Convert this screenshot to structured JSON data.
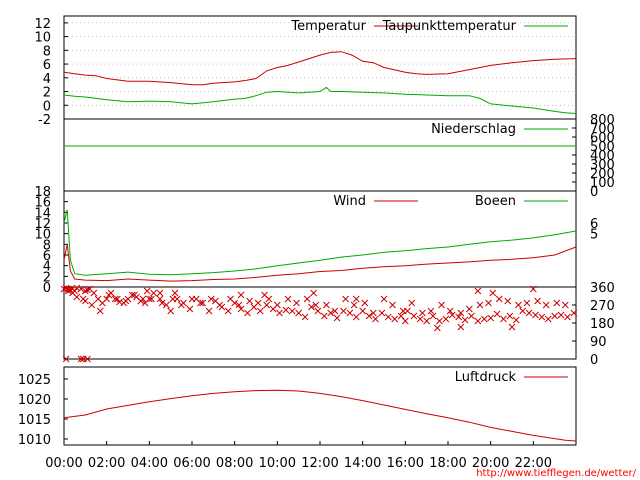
{
  "credit": "http://www.tiefflegen.de/wetter/",
  "colors": {
    "red": "#cc0000",
    "green": "#00aa00",
    "grid": "#a0a0a0",
    "black": "#000000",
    "credit": "#ff0000"
  },
  "chart_data": [
    {
      "type": "line",
      "panel": "temperature",
      "x_unit": "hour",
      "xlim": [
        0,
        24
      ],
      "ylim": [
        -2,
        13
      ],
      "y_ticks": [
        "12",
        "10",
        "8",
        "6",
        "4",
        "2",
        "0",
        "-2"
      ],
      "grid": true,
      "legend_position": "top",
      "series": [
        {
          "name": "Temperatur",
          "color": "#cc0000",
          "x": [
            0,
            0.5,
            1,
            1.5,
            2,
            3,
            4,
            5,
            6,
            6.5,
            7,
            8,
            8.5,
            9,
            9.5,
            10,
            10.5,
            11,
            12,
            12.5,
            13,
            13.5,
            14,
            14.5,
            15,
            16,
            16.5,
            17,
            18,
            19,
            20,
            21,
            22,
            23,
            24
          ],
          "y": [
            4.8,
            4.6,
            4.4,
            4.3,
            3.9,
            3.5,
            3.5,
            3.3,
            3.0,
            3.0,
            3.2,
            3.4,
            3.6,
            3.9,
            5.0,
            5.5,
            5.8,
            6.3,
            7.3,
            7.7,
            7.8,
            7.3,
            6.4,
            6.2,
            5.5,
            4.8,
            4.6,
            4.5,
            4.6,
            5.2,
            5.8,
            6.2,
            6.5,
            6.7,
            6.8
          ]
        },
        {
          "name": "Taupunkttemperatur",
          "color": "#00aa00",
          "x": [
            0,
            0.5,
            1,
            2,
            3,
            4,
            5,
            6,
            7,
            8,
            8.5,
            9,
            9.5,
            10,
            11,
            12,
            12.3,
            12.5,
            13,
            14,
            15,
            16,
            17,
            18,
            19,
            19.5,
            20,
            21,
            22,
            23,
            23.5,
            24
          ],
          "y": [
            1.5,
            1.3,
            1.2,
            0.8,
            0.5,
            0.6,
            0.5,
            0.2,
            0.5,
            0.9,
            1.0,
            1.4,
            1.9,
            2.0,
            1.8,
            2.0,
            2.6,
            2.0,
            2.0,
            1.9,
            1.8,
            1.6,
            1.5,
            1.4,
            1.4,
            1.0,
            0.2,
            -0.1,
            -0.4,
            -0.9,
            -1.1,
            -1.2
          ]
        }
      ]
    },
    {
      "type": "line",
      "panel": "precipitation",
      "xlim": [
        0,
        24
      ],
      "ylim": [
        0,
        800
      ],
      "y_ticks": [
        "800",
        "700",
        "600",
        "500",
        "400",
        "300",
        "200",
        "100",
        "0"
      ],
      "legend_position": "top-right",
      "series": [
        {
          "name": "Niederschlag",
          "color": "#00aa00",
          "x": [
            0,
            24
          ],
          "y": [
            500,
            500
          ]
        }
      ]
    },
    {
      "type": "line",
      "panel": "wind",
      "xlim": [
        0,
        24
      ],
      "ylim": [
        0,
        18
      ],
      "y_ticks": [
        "18",
        "16",
        "14",
        "12",
        "10",
        "8",
        "6",
        "4",
        "2",
        "0"
      ],
      "right_ticks": [
        "6",
        "5"
      ],
      "legend_position": "top-right",
      "series": [
        {
          "name": "Wind",
          "color": "#cc0000",
          "x": [
            0,
            0.15,
            0.3,
            0.5,
            1,
            2,
            3,
            4,
            5,
            6,
            7,
            8,
            9,
            10,
            11,
            12,
            13,
            14,
            15,
            16,
            17,
            18,
            19,
            20,
            21,
            22,
            23,
            24
          ],
          "y": [
            5,
            8,
            3,
            1.5,
            1.3,
            1.2,
            1.5,
            1.3,
            1.1,
            1.2,
            1.4,
            1.5,
            1.8,
            2.2,
            2.5,
            2.9,
            3.1,
            3.5,
            3.8,
            4.0,
            4.3,
            4.5,
            4.7,
            5.0,
            5.2,
            5.5,
            6.0,
            7.5
          ]
        },
        {
          "name": "Boeen",
          "color": "#00aa00",
          "x": [
            0,
            0.15,
            0.3,
            0.5,
            1,
            2,
            3,
            4,
            5,
            6,
            7,
            8,
            9,
            10,
            11,
            12,
            13,
            14,
            15,
            16,
            17,
            18,
            19,
            20,
            21,
            22,
            23,
            24
          ],
          "y": [
            12,
            14.5,
            5,
            2.5,
            2.2,
            2.5,
            2.8,
            2.4,
            2.3,
            2.5,
            2.7,
            3.0,
            3.4,
            4.0,
            4.5,
            5.0,
            5.6,
            6.0,
            6.5,
            6.8,
            7.2,
            7.5,
            8.0,
            8.5,
            8.8,
            9.2,
            9.8,
            10.5
          ]
        }
      ]
    },
    {
      "type": "scatter",
      "panel": "wind-direction",
      "xlim": [
        0,
        24
      ],
      "ylim": [
        0,
        360
      ],
      "y_ticks": [
        "360",
        "270",
        "180",
        "90",
        "0"
      ],
      "marker": "x",
      "color": "#cc0000",
      "x": [
        0,
        0.1,
        0.2,
        0.3,
        0.4,
        0.5,
        0.6,
        0.8,
        1.0,
        1.1,
        1.2,
        1.4,
        1.6,
        1.8,
        2.0,
        2.2,
        2.4,
        2.6,
        2.8,
        3.0,
        3.2,
        3.4,
        3.6,
        3.8,
        4.0,
        4.2,
        4.5,
        4.8,
        5.0,
        5.3,
        5.6,
        5.9,
        6.2,
        6.5,
        6.8,
        7.1,
        7.4,
        7.7,
        8.0,
        8.3,
        8.6,
        8.9,
        9.2,
        9.5,
        9.8,
        10.1,
        10.4,
        10.7,
        11.0,
        11.3,
        11.6,
        11.9,
        12.2,
        12.5,
        12.8,
        13.1,
        13.4,
        13.7,
        14.0,
        14.3,
        14.6,
        14.9,
        15.2,
        15.5,
        15.8,
        16.1,
        16.4,
        16.7,
        17.0,
        17.3,
        17.6,
        17.9,
        18.2,
        18.5,
        18.8,
        19.1,
        19.4,
        19.7,
        20.0,
        20.3,
        20.6,
        20.9,
        21.2,
        21.5,
        21.8,
        22.1,
        22.4,
        22.7,
        23.0,
        23.3,
        23.6,
        23.9,
        0.2,
        0.4,
        0.6,
        0.9,
        1.0,
        1.3,
        1.7,
        2.1,
        2.5,
        2.9,
        3.3,
        3.7,
        4.1,
        4.6,
        5.1,
        5.5,
        6.0,
        6.4,
        6.9,
        7.3,
        7.8,
        8.2,
        8.7,
        9.1,
        9.6,
        10.0,
        10.5,
        10.9,
        11.4,
        11.8,
        12.3,
        12.7,
        13.2,
        13.6,
        14.1,
        14.5,
        15.0,
        15.4,
        15.9,
        16.3,
        16.8,
        17.2,
        17.7,
        18.1,
        18.6,
        19.0,
        19.5,
        19.9,
        20.4,
        20.8,
        21.3,
        21.7,
        22.2,
        22.6,
        23.1,
        23.5,
        17.5,
        18.6,
        21.0,
        22.0,
        19.4,
        20.1,
        16.0,
        4.5,
        3.9,
        5.2,
        8.3,
        9.4,
        11.7,
        13.7,
        0.1,
        0.9,
        1.1,
        0.8
      ],
      "y": [
        350,
        355,
        350,
        345,
        350,
        340,
        355,
        350,
        340,
        345,
        350,
        330,
        300,
        280,
        300,
        330,
        300,
        285,
        280,
        300,
        320,
        310,
        290,
        280,
        300,
        330,
        300,
        270,
        240,
        300,
        280,
        250,
        300,
        280,
        240,
        290,
        260,
        240,
        280,
        250,
        230,
        260,
        240,
        270,
        250,
        230,
        245,
        240,
        230,
        210,
        260,
        240,
        215,
        230,
        205,
        240,
        230,
        210,
        240,
        215,
        200,
        230,
        210,
        200,
        215,
        240,
        215,
        200,
        190,
        215,
        190,
        200,
        220,
        210,
        195,
        215,
        190,
        200,
        205,
        225,
        200,
        215,
        195,
        240,
        230,
        220,
        210,
        200,
        215,
        220,
        210,
        230,
        340,
        330,
        310,
        300,
        290,
        270,
        240,
        320,
        300,
        290,
        320,
        300,
        300,
        280,
        300,
        270,
        300,
        280,
        300,
        270,
        300,
        270,
        290,
        280,
        300,
        270,
        300,
        280,
        300,
        270,
        270,
        240,
        300,
        270,
        280,
        230,
        300,
        270,
        240,
        280,
        230,
        240,
        270,
        240,
        230,
        250,
        270,
        280,
        300,
        290,
        270,
        280,
        290,
        270,
        280,
        270,
        155,
        160,
        160,
        350,
        340,
        330,
        190,
        330,
        340,
        330,
        320,
        320,
        330,
        300,
        0,
        0,
        0,
        0
      ]
    },
    {
      "type": "line",
      "panel": "pressure",
      "xlim": [
        0,
        24
      ],
      "ylim": [
        1008.5,
        1028
      ],
      "y_ticks": [
        "1025",
        "1020",
        "1015",
        "1010"
      ],
      "legend_position": "top-right",
      "series": [
        {
          "name": "Luftdruck",
          "color": "#cc0000",
          "x": [
            0,
            1,
            2,
            3,
            4,
            5,
            6,
            7,
            8,
            9,
            10,
            11,
            12,
            13,
            14,
            15,
            16,
            17,
            18,
            19,
            20,
            21,
            22,
            23,
            23.5,
            24
          ],
          "y": [
            1015.3,
            1016.0,
            1017.5,
            1018.4,
            1019.3,
            1020.1,
            1020.8,
            1021.4,
            1021.8,
            1022.1,
            1022.2,
            1022.0,
            1021.4,
            1020.6,
            1019.6,
            1018.5,
            1017.4,
            1016.3,
            1015.3,
            1014.2,
            1012.9,
            1011.9,
            1010.9,
            1010.1,
            1009.7,
            1009.5
          ]
        }
      ]
    }
  ],
  "x_ticks": [
    "00:00",
    "02:00",
    "04:00",
    "06:00",
    "08:00",
    "10:00",
    "12:00",
    "14:00",
    "16:00",
    "18:00",
    "20:00",
    "22:00"
  ]
}
